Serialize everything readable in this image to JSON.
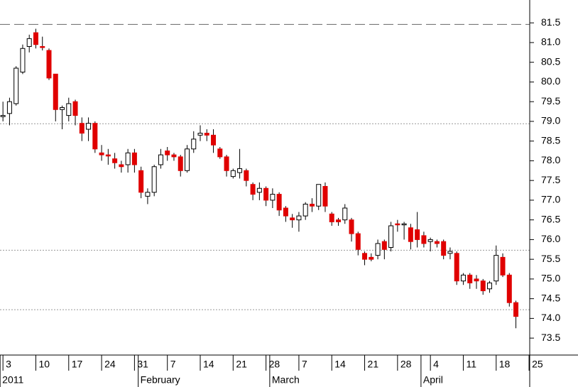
{
  "chart_data": {
    "type": "candlestick",
    "up_color": "#ffffff",
    "down_color": "#e00000",
    "outline_color": "#000000",
    "open": [
      79.12,
      79.2,
      79.45,
      80.25,
      80.9,
      81.25,
      80.9,
      80.8,
      80.2,
      79.3,
      79.15,
      79.5,
      78.95,
      78.8,
      78.95,
      78.2,
      78.15,
      78.05,
      77.9,
      77.9,
      78.2,
      77.75,
      77.1,
      77.2,
      77.9,
      78.25,
      78.15,
      78.1,
      77.75,
      78.3,
      78.65,
      78.7,
      78.65,
      78.3,
      78.1,
      77.6,
      77.7,
      77.75,
      77.4,
      77.2,
      77.3,
      77.0,
      77.15,
      76.8,
      76.55,
      76.5,
      76.6,
      76.9,
      76.85,
      77.35,
      76.65,
      76.5,
      76.5,
      76.5,
      76.15,
      75.65,
      75.55,
      75.6,
      75.95,
      75.8,
      76.4,
      76.38,
      76.3,
      76.25,
      76.1,
      75.95,
      75.95,
      75.95,
      75.65,
      75.65,
      74.95,
      75.1,
      75.0,
      74.95,
      74.75,
      74.95,
      75.55,
      75.1,
      74.4
    ],
    "high": [
      79.5,
      79.6,
      80.4,
      80.95,
      81.2,
      81.35,
      81.15,
      80.85,
      80.2,
      79.4,
      79.6,
      79.55,
      79.1,
      79.1,
      79.0,
      78.4,
      78.3,
      78.2,
      78.0,
      78.3,
      78.3,
      77.85,
      77.3,
      77.9,
      78.3,
      78.35,
      78.2,
      78.15,
      78.4,
      78.75,
      78.9,
      78.8,
      78.8,
      78.35,
      78.15,
      77.8,
      78.3,
      77.8,
      77.45,
      77.45,
      77.35,
      77.3,
      77.2,
      76.85,
      76.65,
      76.7,
      76.95,
      77.05,
      77.4,
      77.45,
      76.7,
      76.55,
      76.9,
      76.55,
      76.2,
      75.7,
      75.65,
      76.0,
      76.0,
      76.45,
      76.5,
      76.45,
      76.4,
      76.7,
      76.2,
      76.05,
      76.0,
      76.0,
      75.8,
      75.7,
      75.15,
      75.15,
      75.1,
      75.0,
      74.95,
      75.85,
      75.65,
      75.15,
      74.45
    ],
    "low": [
      79.0,
      78.9,
      79.4,
      80.2,
      80.75,
      80.85,
      80.8,
      80.05,
      79.0,
      78.8,
      79.0,
      78.9,
      78.5,
      78.5,
      78.2,
      78.0,
      77.9,
      77.8,
      77.7,
      77.7,
      77.7,
      77.05,
      76.9,
      77.1,
      77.8,
      78.0,
      78.0,
      77.6,
      77.7,
      78.2,
      78.5,
      78.5,
      78.2,
      78.05,
      77.6,
      77.55,
      77.55,
      77.35,
      77.0,
      77.0,
      76.85,
      76.8,
      76.6,
      76.45,
      76.3,
      76.2,
      76.5,
      76.7,
      76.75,
      76.7,
      76.35,
      76.35,
      76.4,
      75.95,
      75.6,
      75.35,
      75.45,
      75.5,
      75.5,
      75.7,
      76.2,
      76.0,
      75.75,
      75.8,
      75.8,
      75.7,
      75.8,
      75.5,
      75.5,
      74.85,
      74.85,
      74.75,
      74.75,
      74.6,
      74.65,
      74.85,
      75.05,
      74.3,
      73.75
    ],
    "close": [
      79.15,
      79.5,
      80.35,
      80.85,
      81.1,
      80.95,
      80.88,
      80.1,
      79.3,
      79.35,
      79.45,
      79.15,
      78.7,
      78.95,
      78.3,
      78.15,
      78.12,
      77.95,
      77.85,
      78.2,
      77.9,
      77.2,
      77.2,
      77.85,
      78.15,
      78.15,
      78.1,
      77.75,
      78.3,
      78.55,
      78.7,
      78.65,
      78.4,
      78.1,
      77.75,
      77.75,
      77.8,
      77.5,
      77.15,
      77.3,
      77.0,
      77.15,
      76.75,
      76.6,
      76.5,
      76.6,
      76.9,
      76.85,
      77.4,
      76.85,
      76.45,
      76.45,
      76.8,
      76.15,
      75.75,
      75.5,
      75.5,
      75.9,
      75.75,
      76.35,
      76.38,
      76.4,
      75.95,
      76.0,
      75.9,
      76.0,
      75.9,
      75.6,
      75.7,
      74.95,
      75.1,
      74.9,
      74.95,
      74.7,
      74.9,
      75.6,
      75.1,
      74.4,
      74.05
    ],
    "xlim": [
      -0.45,
      80.1
    ],
    "xticks": [
      {
        "value": 0,
        "label": "3"
      },
      {
        "value": 5,
        "label": "10"
      },
      {
        "value": 10,
        "label": "17"
      },
      {
        "value": 15,
        "label": "24"
      },
      {
        "value": 20,
        "label": "31"
      },
      {
        "value": 25,
        "label": "7"
      },
      {
        "value": 30,
        "label": "14"
      },
      {
        "value": 35,
        "label": "21"
      },
      {
        "value": 40,
        "label": "28"
      },
      {
        "value": 45,
        "label": "7"
      },
      {
        "value": 50,
        "label": "14"
      },
      {
        "value": 55,
        "label": "21"
      },
      {
        "value": 60,
        "label": "28"
      },
      {
        "value": 65,
        "label": "4"
      },
      {
        "value": 70,
        "label": "11"
      },
      {
        "value": 75,
        "label": "18"
      },
      {
        "value": 80,
        "label": "25"
      }
    ],
    "month_ticks": [
      {
        "value": 0,
        "label": "2011"
      },
      {
        "value": 21,
        "label": "February"
      },
      {
        "value": 41,
        "label": "March"
      },
      {
        "value": 64,
        "label": "April"
      }
    ],
    "ylim": [
      73.07,
      82.08
    ],
    "yticks": [
      73.5,
      74,
      74.5,
      75,
      75.5,
      76,
      76.5,
      77,
      77.5,
      78,
      78.5,
      79,
      79.5,
      80,
      80.5,
      81,
      81.5
    ],
    "ytick_labels": [
      "73.5",
      "74.0",
      "74.5",
      "75.0",
      "75.5",
      "76.0",
      "76.5",
      "77.0",
      "77.5",
      "78.0",
      "78.5",
      "79.0",
      "79.5",
      "80.0",
      "80.5",
      "81.0",
      "81.5"
    ],
    "hlines": [
      {
        "value": 81.46,
        "style": "dashed"
      },
      {
        "value": 78.94,
        "style": "dotted"
      },
      {
        "value": 75.73,
        "style": "dotted"
      },
      {
        "value": 74.22,
        "style": "dotted"
      }
    ]
  }
}
